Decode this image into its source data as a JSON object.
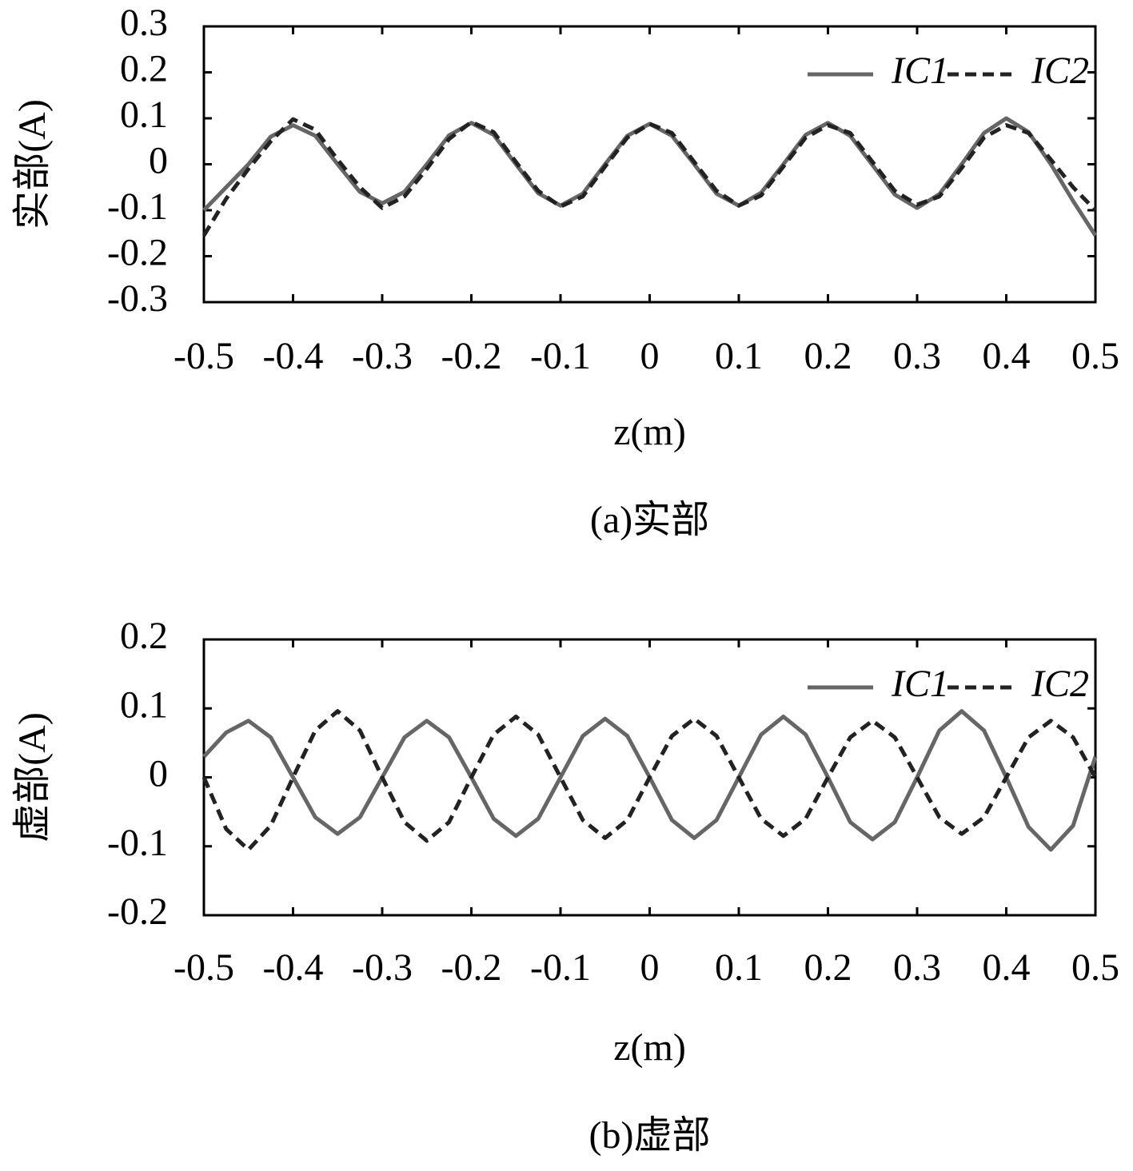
{
  "chart_data": [
    {
      "type": "line",
      "caption": "(a)实部",
      "xlabel": "z(m)",
      "ylabel": "实部(A)",
      "xlim": [
        -0.5,
        0.5
      ],
      "ylim": [
        -0.3,
        0.3
      ],
      "xticks": [
        -0.5,
        -0.4,
        -0.3,
        -0.2,
        -0.1,
        0,
        0.1,
        0.2,
        0.3,
        0.4,
        0.5
      ],
      "yticks": [
        -0.3,
        -0.2,
        -0.1,
        0,
        0.1,
        0.2,
        0.3
      ],
      "legend": "upper right",
      "x": [
        -0.5,
        -0.475,
        -0.45,
        -0.425,
        -0.4,
        -0.375,
        -0.35,
        -0.325,
        -0.3,
        -0.275,
        -0.25,
        -0.225,
        -0.2,
        -0.175,
        -0.15,
        -0.125,
        -0.1,
        -0.075,
        -0.05,
        -0.025,
        0,
        0.025,
        0.05,
        0.075,
        0.1,
        0.125,
        0.15,
        0.175,
        0.2,
        0.225,
        0.25,
        0.275,
        0.3,
        0.325,
        0.35,
        0.375,
        0.4,
        0.425,
        0.45,
        0.475,
        0.5
      ],
      "series": [
        {
          "name": "IC1",
          "color": "#666666",
          "dash": false,
          "values": [
            -0.1,
            -0.05,
            0.0,
            0.06,
            0.085,
            0.062,
            0.0,
            -0.06,
            -0.085,
            -0.06,
            0.0,
            0.063,
            0.09,
            0.064,
            0.0,
            -0.063,
            -0.09,
            -0.064,
            0.0,
            0.062,
            0.088,
            0.062,
            0.0,
            -0.064,
            -0.09,
            -0.062,
            0.0,
            0.064,
            0.09,
            0.062,
            -0.002,
            -0.066,
            -0.095,
            -0.065,
            0.0,
            0.068,
            0.1,
            0.07,
            0.0,
            -0.08,
            -0.155
          ]
        },
        {
          "name": "IC2",
          "color": "#222222",
          "dash": true,
          "values": [
            -0.155,
            -0.075,
            -0.01,
            0.05,
            0.098,
            0.075,
            0.01,
            -0.05,
            -0.095,
            -0.07,
            -0.01,
            0.055,
            0.092,
            0.07,
            0.005,
            -0.058,
            -0.092,
            -0.07,
            -0.005,
            0.058,
            0.088,
            0.068,
            0.005,
            -0.058,
            -0.09,
            -0.068,
            -0.005,
            0.058,
            0.085,
            0.068,
            0.005,
            -0.058,
            -0.088,
            -0.07,
            -0.008,
            0.058,
            0.085,
            0.068,
            0.01,
            -0.05,
            -0.1
          ]
        }
      ]
    },
    {
      "type": "line",
      "caption": "(b)虚部",
      "xlabel": "z(m)",
      "ylabel": "虚部(A)",
      "xlim": [
        -0.5,
        0.5
      ],
      "ylim": [
        -0.2,
        0.2
      ],
      "xticks": [
        -0.5,
        -0.4,
        -0.3,
        -0.2,
        -0.1,
        0,
        0.1,
        0.2,
        0.3,
        0.4,
        0.5
      ],
      "yticks": [
        -0.2,
        -0.1,
        0,
        0.1,
        0.2
      ],
      "legend": "upper right",
      "x": [
        -0.5,
        -0.475,
        -0.45,
        -0.425,
        -0.4,
        -0.375,
        -0.35,
        -0.325,
        -0.3,
        -0.275,
        -0.25,
        -0.225,
        -0.2,
        -0.175,
        -0.15,
        -0.125,
        -0.1,
        -0.075,
        -0.05,
        -0.025,
        0,
        0.025,
        0.05,
        0.075,
        0.1,
        0.125,
        0.15,
        0.175,
        0.2,
        0.225,
        0.25,
        0.275,
        0.3,
        0.325,
        0.35,
        0.375,
        0.4,
        0.425,
        0.45,
        0.475,
        0.5
      ],
      "series": [
        {
          "name": "IC1",
          "color": "#666666",
          "dash": false,
          "values": [
            0.03,
            0.065,
            0.082,
            0.058,
            0.0,
            -0.058,
            -0.082,
            -0.058,
            0.0,
            0.058,
            0.082,
            0.058,
            0.0,
            -0.06,
            -0.085,
            -0.06,
            0.0,
            0.06,
            0.085,
            0.06,
            0.0,
            -0.062,
            -0.088,
            -0.062,
            0.0,
            0.062,
            0.088,
            0.062,
            0.0,
            -0.065,
            -0.09,
            -0.065,
            0.0,
            0.068,
            0.096,
            0.068,
            0.0,
            -0.072,
            -0.105,
            -0.07,
            0.03
          ]
        },
        {
          "name": "IC2",
          "color": "#222222",
          "dash": true,
          "values": [
            0.0,
            -0.075,
            -0.105,
            -0.07,
            0.0,
            0.068,
            0.096,
            0.068,
            0.0,
            -0.065,
            -0.092,
            -0.065,
            0.0,
            0.062,
            0.088,
            0.062,
            0.0,
            -0.062,
            -0.088,
            -0.062,
            0.0,
            0.06,
            0.085,
            0.06,
            0.0,
            -0.06,
            -0.085,
            -0.06,
            0.0,
            0.058,
            0.082,
            0.058,
            0.0,
            -0.058,
            -0.082,
            -0.058,
            0.0,
            0.058,
            0.082,
            0.058,
            0.0
          ]
        }
      ]
    }
  ]
}
